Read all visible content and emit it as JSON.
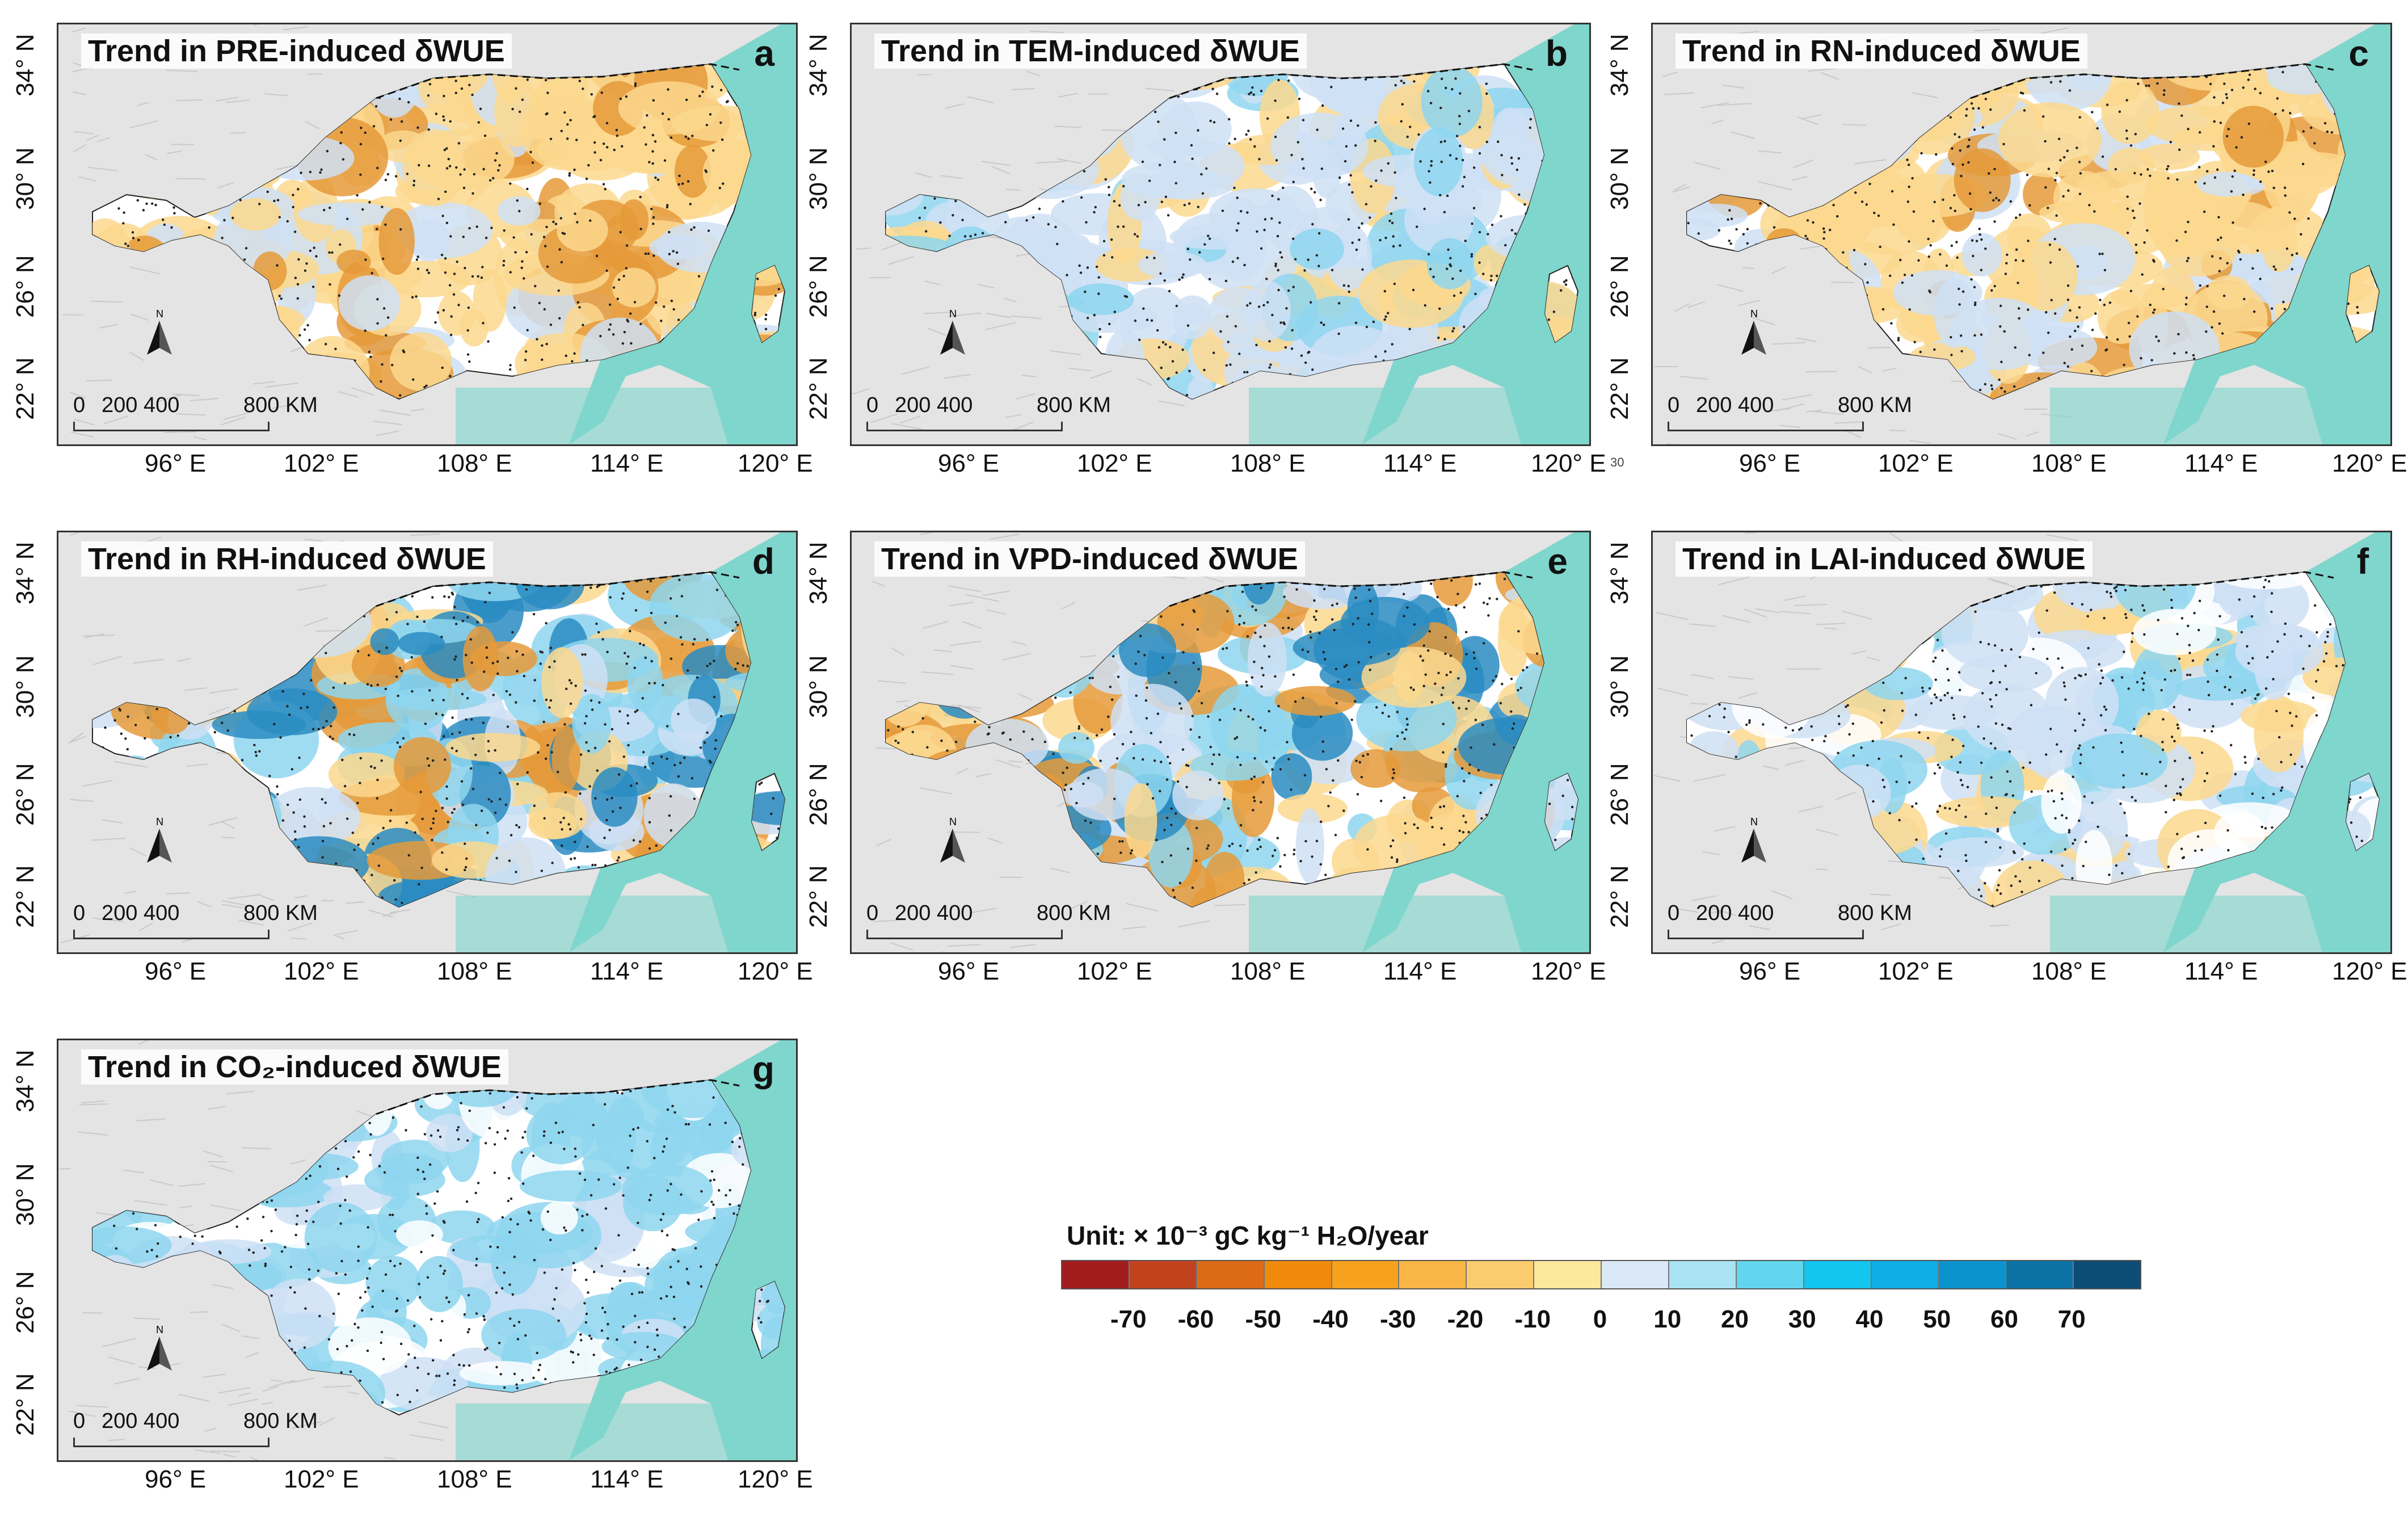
{
  "panels": [
    {
      "id": "a",
      "title": "Trend in PRE-induced δWUE",
      "letter": "a",
      "tone": "warm"
    },
    {
      "id": "b",
      "title": "Trend in TEM-induced δWUE",
      "letter": "b",
      "tone": "cool"
    },
    {
      "id": "c",
      "title": "Trend in RN-induced δWUE",
      "letter": "c",
      "tone": "warm"
    },
    {
      "id": "d",
      "title": "Trend in RH-induced δWUE",
      "letter": "d",
      "tone": "mixed"
    },
    {
      "id": "e",
      "title": "Trend in VPD-induced δWUE",
      "letter": "e",
      "tone": "mixed"
    },
    {
      "id": "f",
      "title": "Trend in LAI-induced δWUE",
      "letter": "f",
      "tone": "cool-light"
    },
    {
      "id": "g",
      "title": "Trend in CO₂-induced δWUE",
      "letter": "g",
      "tone": "cool-strong"
    }
  ],
  "axes": {
    "lat_ticks": [
      "34° N",
      "30° N",
      "26° N",
      "22° N"
    ],
    "lon_ticks": [
      "96° E",
      "102° E",
      "108° E",
      "114° E",
      "120° E"
    ]
  },
  "scale": {
    "zero": "0",
    "mid": "200 400",
    "far": "800 KM"
  },
  "stray_mark": "30",
  "legend": {
    "title": "Unit: × 10⁻³ gC kg⁻¹ H₂O/year",
    "colors": [
      "#a11d1d",
      "#c0431e",
      "#dd6a16",
      "#f08a0c",
      "#f7a21c",
      "#f9b647",
      "#fbcc6e",
      "#fde89c",
      "#dbe8f7",
      "#a9e3f4",
      "#62d6ee",
      "#12c6f0",
      "#10aee6",
      "#0a93cc",
      "#0b72a5",
      "#0c4c75"
    ],
    "ticks": [
      "-70",
      "-60",
      "-50",
      "-40",
      "-30",
      "-20",
      "-10",
      "0",
      "10",
      "20",
      "30",
      "40",
      "50",
      "60",
      "70"
    ]
  },
  "palette": {
    "sea": "#7fd6cc",
    "land_outside": "#e4e4e4",
    "region_base": "#ffffff",
    "warm": "#fbd88e",
    "warm_dark": "#e59a3a",
    "cool": "#cfe1f5",
    "cool_mid": "#8ed6ef",
    "cool_dark": "#2a8cc2"
  }
}
